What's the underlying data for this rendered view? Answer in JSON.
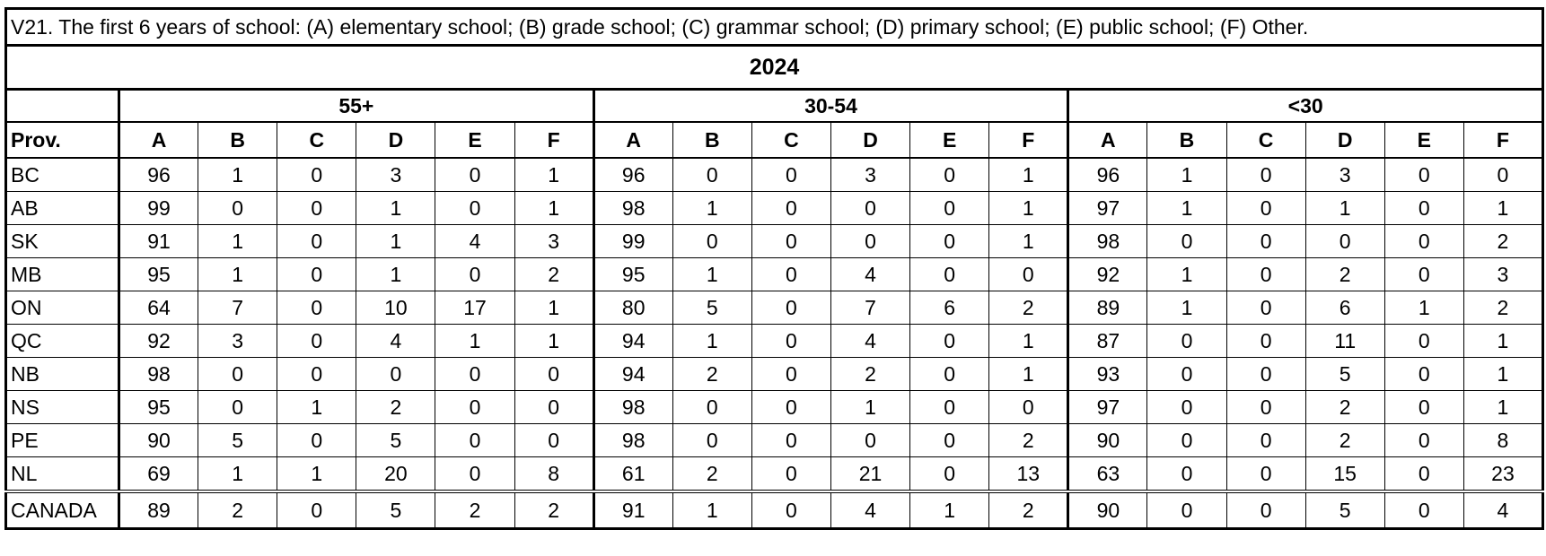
{
  "title": "V21. The first 6 years of school: (A) elementary school; (B) grade school; (C) grammar school; (D) primary school; (E) public school; (F) Other.",
  "year": "2024",
  "groups": [
    "55+",
    "30-54",
    "<30"
  ],
  "row_header": "Prov.",
  "columns": [
    "A",
    "B",
    "C",
    "D",
    "E",
    "F"
  ],
  "rows": [
    {
      "label": "BC",
      "values": [
        96,
        1,
        0,
        3,
        0,
        1,
        96,
        0,
        0,
        3,
        0,
        1,
        96,
        1,
        0,
        3,
        0,
        0
      ]
    },
    {
      "label": "AB",
      "values": [
        99,
        0,
        0,
        1,
        0,
        1,
        98,
        1,
        0,
        0,
        0,
        1,
        97,
        1,
        0,
        1,
        0,
        1
      ]
    },
    {
      "label": "SK",
      "values": [
        91,
        1,
        0,
        1,
        4,
        3,
        99,
        0,
        0,
        0,
        0,
        1,
        98,
        0,
        0,
        0,
        0,
        2
      ]
    },
    {
      "label": "MB",
      "values": [
        95,
        1,
        0,
        1,
        0,
        2,
        95,
        1,
        0,
        4,
        0,
        0,
        92,
        1,
        0,
        2,
        0,
        3
      ]
    },
    {
      "label": "ON",
      "values": [
        64,
        7,
        0,
        10,
        17,
        1,
        80,
        5,
        0,
        7,
        6,
        2,
        89,
        1,
        0,
        6,
        1,
        2
      ]
    },
    {
      "label": "QC",
      "values": [
        92,
        3,
        0,
        4,
        1,
        1,
        94,
        1,
        0,
        4,
        0,
        1,
        87,
        0,
        0,
        11,
        0,
        1
      ]
    },
    {
      "label": "NB",
      "values": [
        98,
        0,
        0,
        0,
        0,
        0,
        94,
        2,
        0,
        2,
        0,
        1,
        93,
        0,
        0,
        5,
        0,
        1
      ]
    },
    {
      "label": "NS",
      "values": [
        95,
        0,
        1,
        2,
        0,
        0,
        98,
        0,
        0,
        1,
        0,
        0,
        97,
        0,
        0,
        2,
        0,
        1
      ]
    },
    {
      "label": "PE",
      "values": [
        90,
        5,
        0,
        5,
        0,
        0,
        98,
        0,
        0,
        0,
        0,
        2,
        90,
        0,
        0,
        2,
        0,
        8
      ]
    },
    {
      "label": "NL",
      "values": [
        69,
        1,
        1,
        20,
        0,
        8,
        61,
        2,
        0,
        21,
        0,
        13,
        63,
        0,
        0,
        15,
        0,
        23
      ]
    }
  ],
  "total": {
    "label": "CANADA",
    "values": [
      89,
      2,
      0,
      5,
      2,
      2,
      91,
      1,
      0,
      4,
      1,
      2,
      90,
      0,
      0,
      5,
      0,
      4
    ]
  }
}
